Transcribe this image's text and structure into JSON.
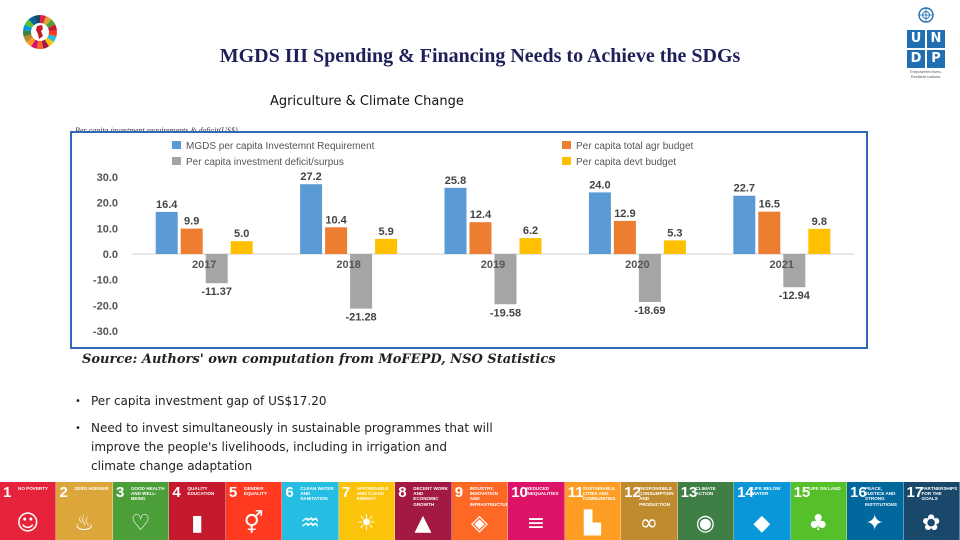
{
  "title": "MGDS III Spending & Financing Needs to Achieve the SDGs",
  "subtitle": "Agriculture & Climate Change",
  "chart_caption": "Per capita investment requirements & deficit(US$)",
  "source": "Source: Authors' own computation from MoFEPD, NSO Statistics",
  "logo": {
    "cells": [
      "U",
      "N",
      "D",
      "P"
    ],
    "tagline": "Empowered lives. Resilient nations."
  },
  "colors": {
    "title": "#1f1f5a",
    "frame": "#2f68b8"
  },
  "chart_data": {
    "type": "bar",
    "categories": [
      "2017",
      "2018",
      "2019",
      "2020",
      "2021"
    ],
    "series": [
      {
        "name": "MGDS per capita Investemnt Requirement",
        "color": "#5b9bd5",
        "values": [
          16.4,
          27.2,
          25.8,
          24.0,
          22.7
        ]
      },
      {
        "name": "Per capita total agr budget",
        "color": "#ed7d31",
        "values": [
          9.9,
          10.4,
          12.4,
          12.9,
          16.5
        ]
      },
      {
        "name": "Per capita investment deficit/surpus",
        "color": "#a5a5a5",
        "values": [
          -11.37,
          -21.28,
          -19.58,
          -18.69,
          -12.94
        ]
      },
      {
        "name": "Per capita devt budget",
        "color": "#ffc000",
        "values": [
          5.0,
          5.9,
          6.2,
          5.3,
          9.8
        ]
      }
    ],
    "data_labels": [
      [
        "16.4",
        "27.2",
        "25.8",
        "24.0",
        "22.7"
      ],
      [
        "9.9",
        "10.4",
        "12.4",
        "12.9",
        "16.5"
      ],
      [
        "-11.37",
        "-21.28",
        "-19.58",
        "-18.69",
        "-12.94"
      ],
      [
        "5.0",
        "5.9",
        "6.2",
        "5.3",
        "9.8"
      ]
    ],
    "yticks": [
      "30.0",
      "20.0",
      "10.0",
      "0.0",
      "-10.0",
      "-20.0",
      "-30.0"
    ],
    "ylim": [
      -30,
      30
    ],
    "grid": false,
    "legend_position": "top"
  },
  "bullets": [
    "Per capita investment gap of US$17.20",
    "Need to invest simultaneously in sustainable programmes that will improve the people's livelihoods, including in irrigation and climate change adaptation"
  ],
  "sdgs": [
    {
      "num": "1",
      "name": "No poverty",
      "color": "#e5243b",
      "glyph": "☺"
    },
    {
      "num": "2",
      "name": "Zero hunger",
      "color": "#dda63a",
      "glyph": "♨"
    },
    {
      "num": "3",
      "name": "Good health and well-being",
      "color": "#4c9f38",
      "glyph": "♡"
    },
    {
      "num": "4",
      "name": "Quality education",
      "color": "#c5192d",
      "glyph": "▮"
    },
    {
      "num": "5",
      "name": "Gender equality",
      "color": "#ff3a21",
      "glyph": "⚥"
    },
    {
      "num": "6",
      "name": "Clean water and sanitation",
      "color": "#26bde2",
      "glyph": "♒"
    },
    {
      "num": "7",
      "name": "Affordable and clean energy",
      "color": "#fcc30b",
      "glyph": "☀"
    },
    {
      "num": "8",
      "name": "Decent work and economic growth",
      "color": "#a21942",
      "glyph": "▲"
    },
    {
      "num": "9",
      "name": "Industry, innovation and infrastructure",
      "color": "#fd6925",
      "glyph": "◈"
    },
    {
      "num": "10",
      "name": "Reduced inequalities",
      "color": "#dd1367",
      "glyph": "≡"
    },
    {
      "num": "11",
      "name": "Sustainable cities and communities",
      "color": "#fd9d24",
      "glyph": "▙"
    },
    {
      "num": "12",
      "name": "Responsible consumption and production",
      "color": "#bf8b2e",
      "glyph": "∞"
    },
    {
      "num": "13",
      "name": "Climate action",
      "color": "#3f7e44",
      "glyph": "◉"
    },
    {
      "num": "14",
      "name": "Life below water",
      "color": "#0a97d9",
      "glyph": "◆"
    },
    {
      "num": "15",
      "name": "Life on land",
      "color": "#56c02b",
      "glyph": "♣"
    },
    {
      "num": "16",
      "name": "Peace, justice and strong institutions",
      "color": "#00689d",
      "glyph": "✦"
    },
    {
      "num": "17",
      "name": "Partnerships for the goals",
      "color": "#19486a",
      "glyph": "✿"
    }
  ]
}
